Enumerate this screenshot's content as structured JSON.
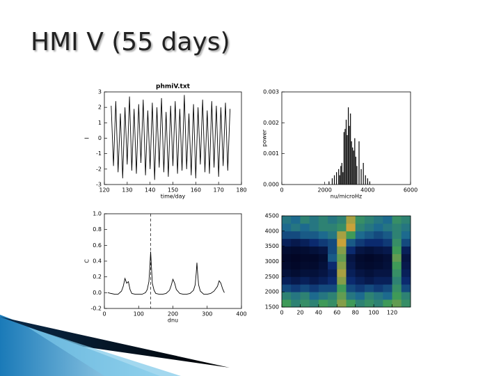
{
  "title": "HMI V (55 days)",
  "chart_data": [
    {
      "type": "line",
      "title": "phmiV.txt",
      "xlabel": "time/day",
      "ylabel": "I",
      "color": "#000000",
      "xlim": [
        120,
        180
      ],
      "xticks": [
        120,
        130,
        140,
        150,
        160,
        170,
        180
      ],
      "ylim": [
        -3,
        3
      ],
      "yticks": [
        -3,
        -2,
        -1,
        0,
        1,
        2,
        3
      ],
      "x": [
        123,
        124,
        125,
        126,
        127,
        128,
        129,
        130,
        131,
        132,
        133,
        134,
        135,
        136,
        137,
        138,
        139,
        140,
        141,
        142,
        143,
        144,
        145,
        146,
        147,
        148,
        149,
        150,
        151,
        152,
        153,
        154,
        155,
        156,
        157,
        158,
        159,
        160,
        161,
        162,
        163,
        164,
        165,
        166,
        167,
        168,
        169,
        170,
        171,
        172,
        173,
        174,
        175
      ],
      "values": [
        2.1,
        -1.8,
        2.4,
        -2.2,
        1.6,
        -2.6,
        2.0,
        -1.7,
        2.7,
        -2.1,
        1.9,
        -2.3,
        2.2,
        -1.6,
        2.5,
        -2.4,
        1.8,
        -2.0,
        2.3,
        -2.7,
        2.0,
        -1.9,
        2.6,
        -2.2,
        1.7,
        -2.5,
        2.1,
        -1.8,
        2.4,
        -2.3,
        1.9,
        -2.1,
        2.8,
        -2.0,
        1.6,
        -2.4,
        2.2,
        -2.6,
        2.0,
        -1.7,
        2.5,
        -2.2,
        1.8,
        -2.3,
        2.4,
        -1.9,
        2.1,
        -2.5,
        2.0,
        -1.8,
        2.3,
        -2.1,
        1.9
      ]
    },
    {
      "type": "stem",
      "xlabel": "nu/microHz",
      "ylabel": "power",
      "color": "#000000",
      "xlim": [
        0,
        6000
      ],
      "xticks": [
        0,
        2000,
        4000,
        6000
      ],
      "ylim": [
        0,
        0.003
      ],
      "yticks": [
        {
          "value": 0,
          "label": "0.000"
        },
        {
          "value": 0.001,
          "label": "0.001"
        },
        {
          "value": 0.002,
          "label": "0.002"
        },
        {
          "value": 0.003,
          "label": "0.003"
        }
      ],
      "x": [
        2200,
        2350,
        2450,
        2550,
        2650,
        2700,
        2750,
        2800,
        2850,
        2900,
        2950,
        3000,
        3050,
        3100,
        3150,
        3200,
        3250,
        3300,
        3350,
        3400,
        3450,
        3500,
        3600,
        3700,
        3800,
        3900,
        4000,
        4100
      ],
      "values": [
        0.0001,
        0.0002,
        0.0003,
        0.0004,
        0.0005,
        0.0003,
        0.0006,
        0.0007,
        0.0004,
        0.0017,
        0.0018,
        0.0021,
        0.0016,
        0.0025,
        0.0019,
        0.0023,
        0.0014,
        0.0012,
        0.0011,
        0.0015,
        0.0009,
        0.0006,
        0.0014,
        0.0005,
        0.0007,
        0.0003,
        0.0002,
        0.0001
      ]
    },
    {
      "type": "line",
      "xlabel": "dnu",
      "ylabel": "C",
      "color": "#000000",
      "vline": 135,
      "xlim": [
        0,
        400
      ],
      "xticks": [
        0,
        100,
        200,
        300,
        400
      ],
      "ylim": [
        -0.2,
        1.0
      ],
      "yticks": [
        -0.2,
        {
          "value": 0,
          "label": "0.0"
        },
        0.2,
        0.4,
        0.6,
        0.8,
        {
          "value": 1,
          "label": "1.0"
        }
      ],
      "x": [
        10,
        20,
        30,
        40,
        50,
        55,
        60,
        65,
        70,
        75,
        80,
        90,
        100,
        110,
        120,
        125,
        130,
        133,
        135,
        137,
        140,
        145,
        150,
        160,
        170,
        180,
        190,
        195,
        200,
        205,
        210,
        220,
        230,
        240,
        250,
        260,
        265,
        268,
        270,
        272,
        275,
        280,
        290,
        300,
        310,
        320,
        330,
        335,
        340,
        345,
        350
      ],
      "values": [
        0.0,
        -0.01,
        -0.02,
        -0.02,
        0.02,
        0.08,
        0.18,
        0.12,
        0.14,
        0.04,
        -0.01,
        -0.02,
        -0.02,
        -0.02,
        0.0,
        0.04,
        0.14,
        0.35,
        0.52,
        0.35,
        0.12,
        0.03,
        -0.01,
        -0.02,
        -0.02,
        -0.01,
        0.03,
        0.09,
        0.17,
        0.12,
        0.04,
        -0.01,
        -0.02,
        -0.02,
        -0.01,
        0.03,
        0.1,
        0.25,
        0.38,
        0.25,
        0.1,
        0.02,
        -0.02,
        -0.02,
        -0.01,
        0.02,
        0.08,
        0.15,
        0.12,
        0.05,
        0.0
      ]
    },
    {
      "type": "heatmap",
      "xlim": [
        0,
        140
      ],
      "xticks": [
        0,
        20,
        40,
        60,
        80,
        100,
        120
      ],
      "ylim": [
        1500,
        4500
      ],
      "yticks": [
        1500,
        2000,
        2500,
        3000,
        3500,
        4000,
        4500
      ],
      "colormap": [
        "#000018",
        "#0b2a6e",
        "#1d6a8e",
        "#3f9a58",
        "#c9a23a",
        "#e0521e"
      ],
      "z": [
        [
          0.6,
          0.5,
          0.55,
          0.5,
          0.6,
          0.55,
          0.7,
          0.6,
          0.5,
          0.55,
          0.5,
          0.6,
          0.65,
          0.55
        ],
        [
          0.5,
          0.45,
          0.5,
          0.4,
          0.45,
          0.5,
          0.65,
          0.45,
          0.4,
          0.5,
          0.45,
          0.4,
          0.6,
          0.5
        ],
        [
          0.3,
          0.25,
          0.3,
          0.25,
          0.3,
          0.3,
          0.6,
          0.3,
          0.25,
          0.3,
          0.25,
          0.3,
          0.55,
          0.3
        ],
        [
          0.15,
          0.12,
          0.15,
          0.12,
          0.15,
          0.2,
          0.7,
          0.2,
          0.15,
          0.12,
          0.15,
          0.15,
          0.5,
          0.2
        ],
        [
          0.08,
          0.06,
          0.08,
          0.08,
          0.1,
          0.15,
          0.75,
          0.15,
          0.1,
          0.08,
          0.1,
          0.1,
          0.55,
          0.15
        ],
        [
          0.05,
          0.04,
          0.05,
          0.05,
          0.08,
          0.2,
          0.7,
          0.12,
          0.06,
          0.05,
          0.06,
          0.08,
          0.6,
          0.12
        ],
        [
          0.04,
          0.03,
          0.04,
          0.04,
          0.06,
          0.35,
          0.65,
          0.1,
          0.05,
          0.04,
          0.05,
          0.07,
          0.65,
          0.1
        ],
        [
          0.06,
          0.05,
          0.06,
          0.08,
          0.1,
          0.3,
          0.7,
          0.2,
          0.1,
          0.08,
          0.1,
          0.12,
          0.6,
          0.15
        ],
        [
          0.15,
          0.12,
          0.15,
          0.2,
          0.25,
          0.3,
          0.8,
          0.35,
          0.25,
          0.2,
          0.2,
          0.25,
          0.55,
          0.3
        ],
        [
          0.3,
          0.3,
          0.35,
          0.35,
          0.4,
          0.45,
          0.75,
          0.6,
          0.4,
          0.35,
          0.3,
          0.35,
          0.5,
          0.4
        ],
        [
          0.4,
          0.45,
          0.4,
          0.45,
          0.5,
          0.5,
          0.55,
          0.8,
          0.5,
          0.45,
          0.4,
          0.45,
          0.5,
          0.45
        ],
        [
          0.45,
          0.4,
          0.5,
          0.45,
          0.5,
          0.45,
          0.5,
          0.75,
          0.55,
          0.5,
          0.45,
          0.4,
          0.55,
          0.5
        ]
      ]
    }
  ]
}
